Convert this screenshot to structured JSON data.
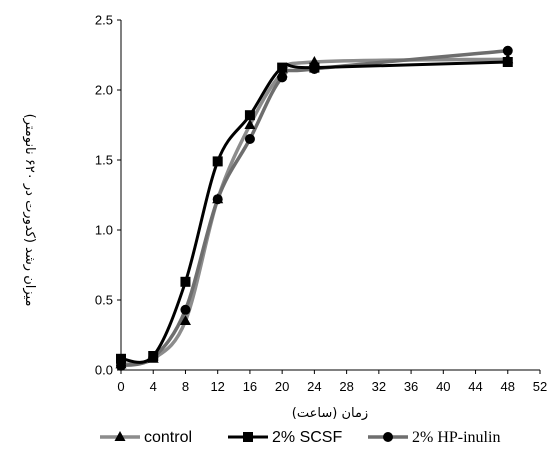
{
  "chart_data": {
    "type": "line",
    "xlabel": "زمان (ساعت)",
    "ylabel": "میزان رشد (کدورت در ۶۲۰ نانومتر)",
    "xlim": [
      0,
      52
    ],
    "ylim": [
      0,
      2.5
    ],
    "xticks": [
      "0",
      "4",
      "8",
      "12",
      "16",
      "20",
      "24",
      "28",
      "32",
      "36",
      "40",
      "44",
      "48",
      "52"
    ],
    "yticks": [
      "0.0",
      "0.5",
      "1.0",
      "1.5",
      "2.0",
      "2.5"
    ],
    "legend_position": "bottom",
    "series": [
      {
        "name": "control",
        "marker": "triangle",
        "color": "#8c8c8c",
        "x": [
          0,
          4,
          8,
          12,
          16,
          20,
          24,
          48
        ],
        "y": [
          0.04,
          0.08,
          0.35,
          1.22,
          1.75,
          2.12,
          2.2,
          2.22
        ]
      },
      {
        "name": "2% SCSF",
        "marker": "square",
        "color": "#000000",
        "x": [
          0,
          4,
          8,
          12,
          16,
          20,
          24,
          48
        ],
        "y": [
          0.08,
          0.1,
          0.63,
          1.49,
          1.82,
          2.16,
          2.16,
          2.2
        ]
      },
      {
        "name": "2% HP-inulin",
        "marker": "circle",
        "color": "#6e6e6e",
        "x": [
          0,
          4,
          8,
          12,
          16,
          20,
          24,
          48
        ],
        "y": [
          0.03,
          0.09,
          0.43,
          1.22,
          1.65,
          2.09,
          2.15,
          2.28
        ]
      }
    ]
  }
}
